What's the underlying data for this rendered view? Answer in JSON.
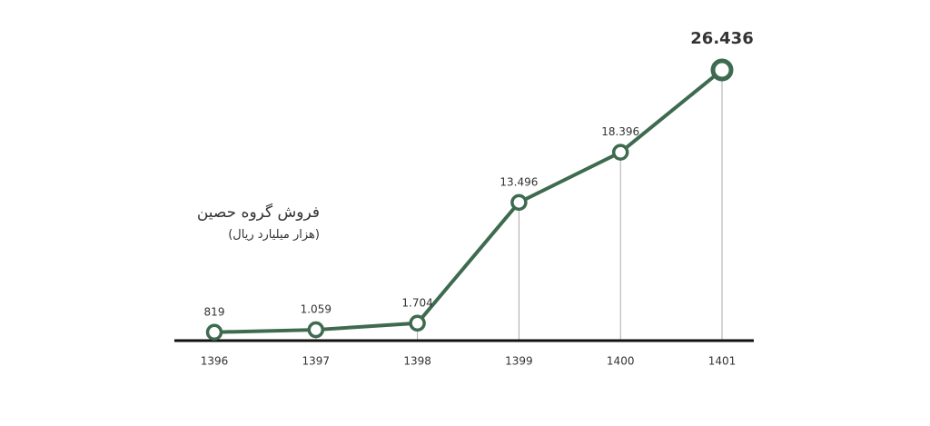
{
  "chart_data": {
    "type": "line",
    "title": "فروش گروه حصین",
    "subtitle": "(هزار میلیارد ریال)",
    "categories": [
      "1396",
      "1397",
      "1398",
      "1399",
      "1400",
      "1401"
    ],
    "values": [
      819,
      1059,
      1704,
      13496,
      18396,
      26436
    ],
    "value_labels": [
      "819",
      "1.059",
      "1.704",
      "13.496",
      "18.396",
      "26.436"
    ],
    "color": "#3e6b4f"
  }
}
